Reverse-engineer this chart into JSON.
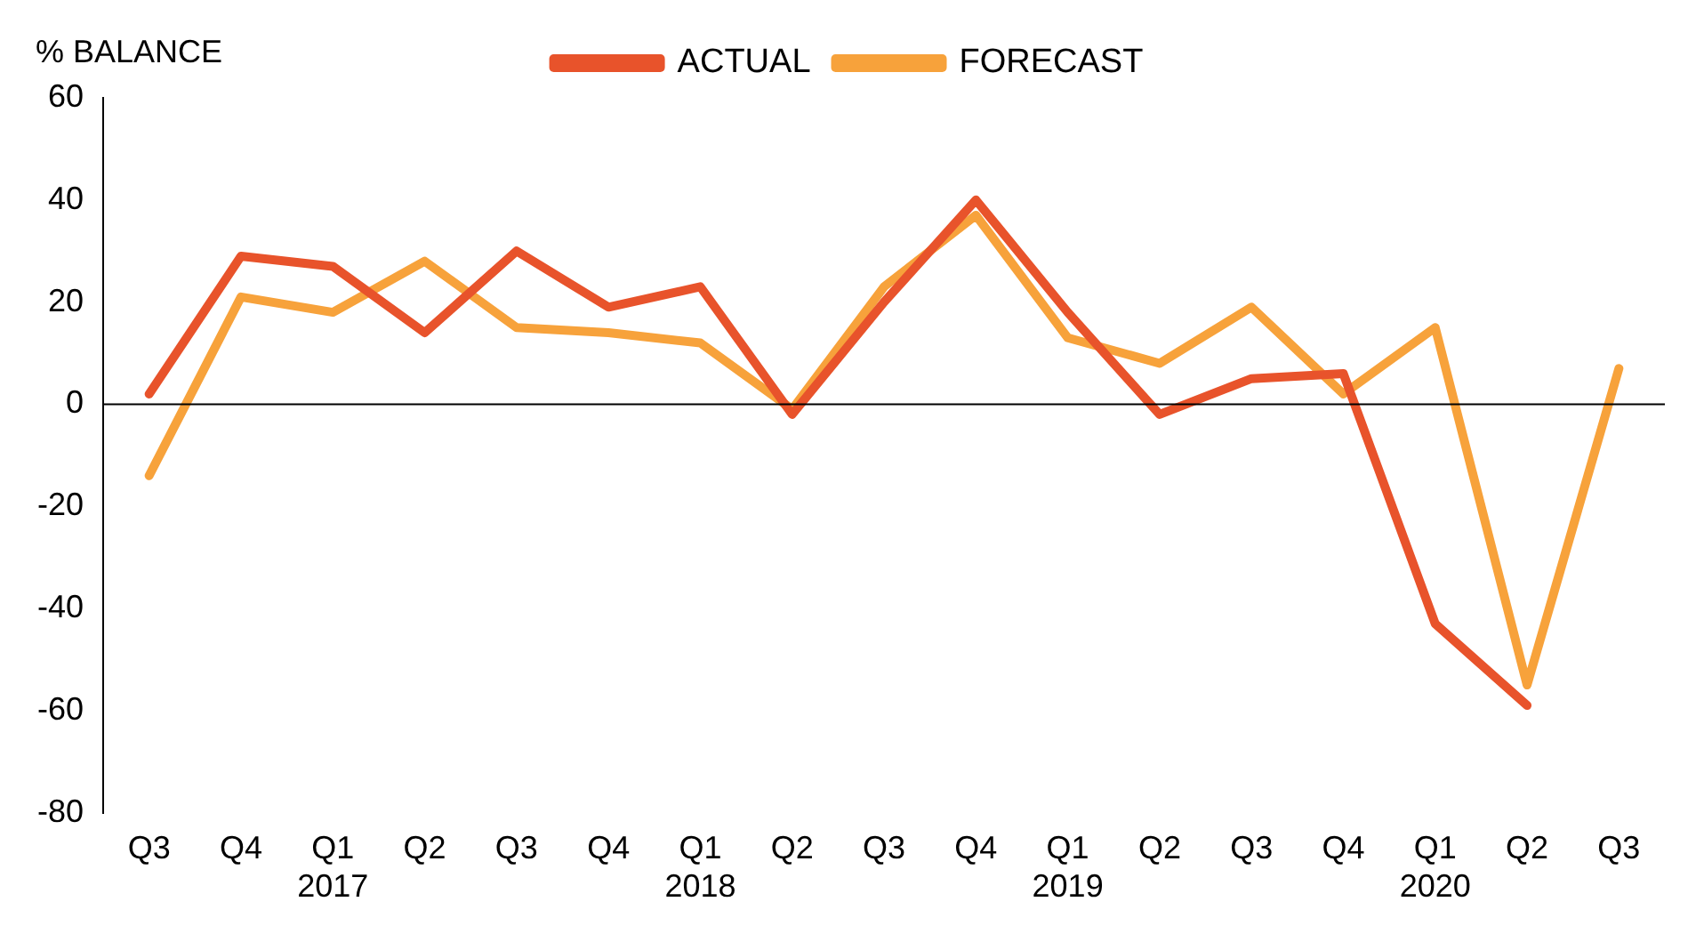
{
  "chart_data": {
    "type": "line",
    "ylabel": "% BALANCE",
    "categories": [
      "Q3",
      "Q4",
      "Q1\n2017",
      "Q2",
      "Q3",
      "Q4",
      "Q1\n2018",
      "Q2",
      "Q3",
      "Q4",
      "Q1\n2019",
      "Q2",
      "Q3",
      "Q4",
      "Q1\n2020",
      "Q2",
      "Q3"
    ],
    "series": [
      {
        "name": "ACTUAL",
        "color": "#e8532b",
        "values": [
          2,
          29,
          27,
          14,
          30,
          19,
          23,
          -2,
          20,
          40,
          18,
          -2,
          5,
          6,
          -43,
          -59,
          null
        ]
      },
      {
        "name": "FORECAST",
        "color": "#f7a23b",
        "values": [
          -14,
          21,
          18,
          28,
          15,
          14,
          12,
          -1,
          23,
          37,
          13,
          8,
          19,
          2,
          15,
          -55,
          7
        ]
      }
    ],
    "ylim": [
      -80,
      60
    ],
    "yticks": [
      -80,
      -60,
      -40,
      -20,
      0,
      20,
      40,
      60
    ],
    "ref_lines": [
      {
        "axis": "y",
        "value": 0,
        "color": "#000000",
        "line_style": "solid"
      }
    ],
    "grid": false,
    "legend": "top",
    "marker": "none",
    "line_style": "solid"
  }
}
